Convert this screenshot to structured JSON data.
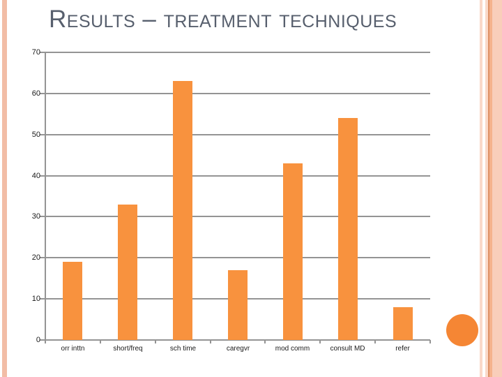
{
  "slide": {
    "title": "Results – treatment techniques",
    "title_color": "#575F6D",
    "decor": {
      "left_stripe_color": "#F2BDA6",
      "right_stripe_thin_color": "#FAD9C9",
      "right_stripe_line_color": "#DD9166",
      "right_stripe_medium_color": "#F5B28C",
      "right_stripe_wide_color": "#F9CEBA",
      "circle_color": "#F58634"
    }
  },
  "chart_data": {
    "type": "bar",
    "title": "",
    "xlabel": "",
    "ylabel": "",
    "categories": [
      "orr inttn",
      "short/freq",
      "sch time",
      "caregvr",
      "mod comm",
      "consult MD",
      "refer"
    ],
    "values": [
      19,
      33,
      63,
      17,
      43,
      54,
      8
    ],
    "ylim": [
      0,
      70
    ],
    "ytick_step": 10,
    "ytick_labels": [
      "0",
      "10",
      "20",
      "30",
      "40",
      "50",
      "60",
      "70"
    ],
    "grid": true,
    "legend": false,
    "bar_color": "#F8923E",
    "grid_color": "#949494",
    "axis_color": "#949494",
    "label_color": "#1A1A1A"
  }
}
